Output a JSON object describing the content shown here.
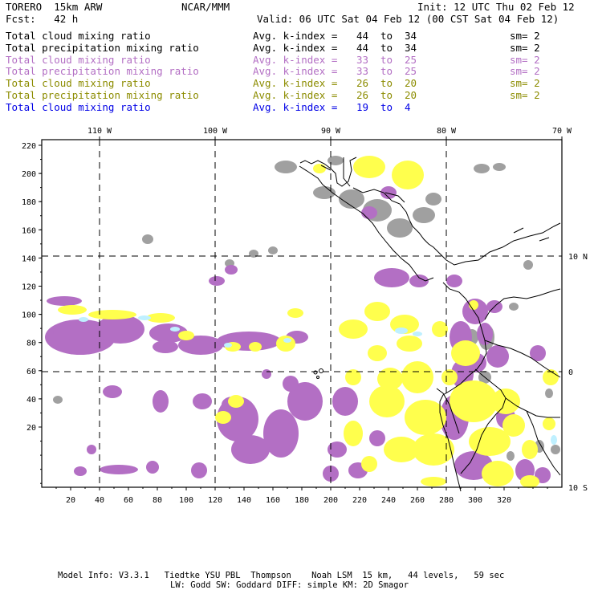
{
  "header": {
    "model": "TORERO  15km ARW",
    "org": "NCAR/MMM",
    "init": "Init: 12 UTC Thu 02 Feb 12",
    "fcst": "Fcst:   42 h",
    "valid": "Valid: 06 UTC Sat 04 Feb 12 (00 CST Sat 04 Feb 12)"
  },
  "legend": [
    {
      "label": "Total cloud mixing ratio",
      "kindex": "Avg. k-index =",
      "from": "44",
      "to": "to",
      "to_val": "34",
      "sm": "sm= 2",
      "color": "#000000"
    },
    {
      "label": "Total precipitation mixing ratio",
      "kindex": "Avg. k-index =",
      "from": "44",
      "to": "to",
      "to_val": "34",
      "sm": "sm= 2",
      "color": "#000000"
    },
    {
      "label": "Total cloud mixing ratio",
      "kindex": "Avg. k-index =",
      "from": "33",
      "to": "to",
      "to_val": "25",
      "sm": "sm= 2",
      "color": "#b36fc4"
    },
    {
      "label": "Total precipitation mixing ratio",
      "kindex": "Avg. k-index =",
      "from": "33",
      "to": "to",
      "to_val": "25",
      "sm": "sm= 2",
      "color": "#b36fc4"
    },
    {
      "label": "Total cloud mixing ratio",
      "kindex": "Avg. k-index =",
      "from": "26",
      "to": "to",
      "to_val": "20",
      "sm": "sm= 2",
      "color": "#8c8c00"
    },
    {
      "label": "Total precipitation mixing ratio",
      "kindex": "Avg. k-index =",
      "from": "26",
      "to": "to",
      "to_val": "20",
      "sm": "sm= 2",
      "color": "#8c8c00"
    },
    {
      "label": "Total cloud mixing ratio",
      "kindex": "Avg. k-index =",
      "from": "19",
      "to": "to",
      "to_val": "4",
      "sm": "",
      "color": "#0000e6"
    }
  ],
  "map": {
    "lon_labels": [
      "110 W",
      "100 W",
      "90 W",
      "80 W",
      "70 W"
    ],
    "lat_labels": [
      "10 N",
      "0",
      "10 S"
    ],
    "x_ticks": [
      "20",
      "40",
      "60",
      "80",
      "100",
      "120",
      "140",
      "160",
      "180",
      "200",
      "220",
      "240",
      "260",
      "280",
      "300",
      "320"
    ],
    "y_ticks": [
      "220",
      "200",
      "180",
      "160",
      "140",
      "120",
      "100",
      "80",
      "60",
      "40",
      "20"
    ],
    "colors": {
      "gray": "#a0a0a0",
      "purple": "#b36fc4",
      "yellow": "#ffff4d",
      "cyan": "#bff0ff",
      "grid": "#000000",
      "coast": "#000000"
    }
  },
  "footer": {
    "line1": "Model Info: V3.3.1   Tiedtke YSU PBL  Thompson    Noah LSM  15 km,   44 levels,   59 sec",
    "line2": "LW: Godd SW: Goddard DIFF: simple KM: 2D Smagor"
  }
}
